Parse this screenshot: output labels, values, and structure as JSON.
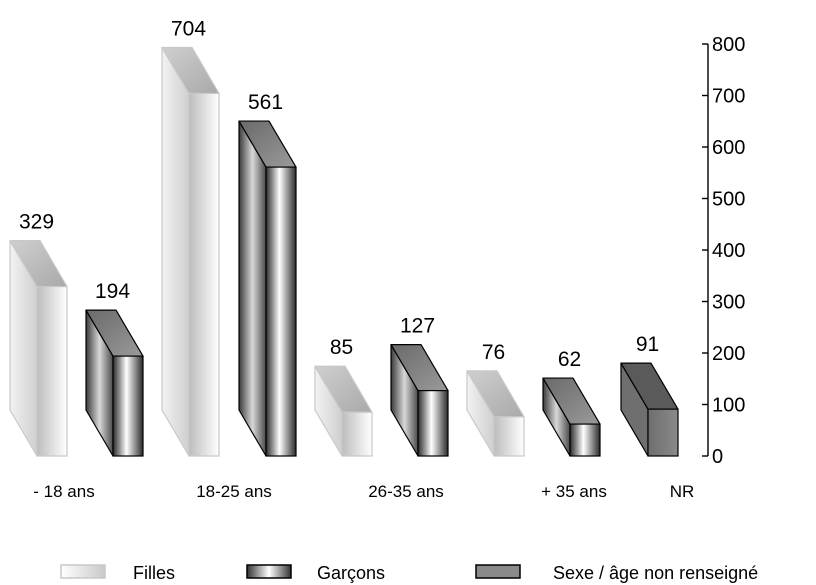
{
  "chart_data": {
    "type": "bar",
    "style": "3d",
    "categories": [
      "- 18 ans",
      "18-25 ans",
      "26-35 ans",
      "+ 35 ans",
      "NR"
    ],
    "series": [
      {
        "name": "Filles",
        "values": [
          329,
          704,
          85,
          76,
          null
        ],
        "color": "#e2e2e2"
      },
      {
        "name": "Garçons",
        "values": [
          194,
          561,
          127,
          62,
          null
        ],
        "color": "#ffffff"
      },
      {
        "name": "Sexe / âge non renseigné",
        "values": [
          null,
          null,
          null,
          null,
          91
        ],
        "color": "#7a7a7a"
      }
    ],
    "ylim": [
      0,
      800
    ],
    "yticks": [
      "0",
      "100",
      "200",
      "300",
      "400",
      "500",
      "600",
      "700",
      "800"
    ],
    "y_axis_side": "right",
    "grid": false,
    "legend_position": "bottom"
  }
}
